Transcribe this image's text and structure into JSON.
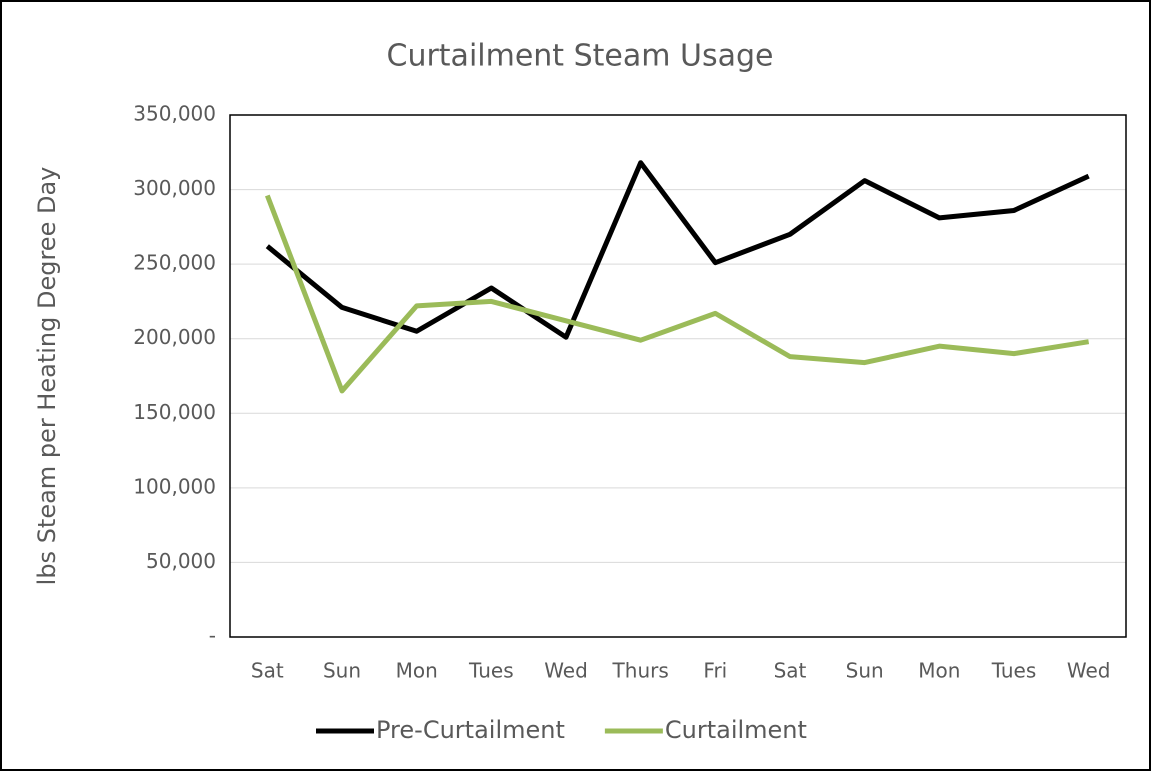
{
  "chart_data": {
    "type": "line",
    "title": "Curtailment Steam Usage",
    "y_label": "lbs Steam per Heating Degree Day",
    "categories": [
      "Sat",
      "Sun",
      "Mon",
      "Tues",
      "Wed",
      "Thurs",
      "Fri",
      "Sat",
      "Sun",
      "Mon",
      "Tues",
      "Wed"
    ],
    "series": [
      {
        "name": "Pre-Curtailment",
        "color": "#000000",
        "values": [
          262000,
          221000,
          205000,
          234000,
          201000,
          318000,
          251000,
          270000,
          306000,
          281000,
          286000,
          309000
        ]
      },
      {
        "name": "Curtailment",
        "color": "#9bbb59",
        "values": [
          296000,
          165000,
          222000,
          225000,
          212000,
          199000,
          217000,
          188000,
          184000,
          195000,
          190000,
          198000
        ]
      }
    ],
    "ylim": [
      0,
      350000
    ],
    "yticks": [
      {
        "value": 0,
        "label": "-"
      },
      {
        "value": 50000,
        "label": "50,000"
      },
      {
        "value": 100000,
        "label": "100,000"
      },
      {
        "value": 150000,
        "label": "150,000"
      },
      {
        "value": 200000,
        "label": "200,000"
      },
      {
        "value": 250000,
        "label": "250,000"
      },
      {
        "value": 300000,
        "label": "300,000"
      },
      {
        "value": 350000,
        "label": "350,000"
      }
    ],
    "grid": true,
    "legend": "bottom"
  }
}
